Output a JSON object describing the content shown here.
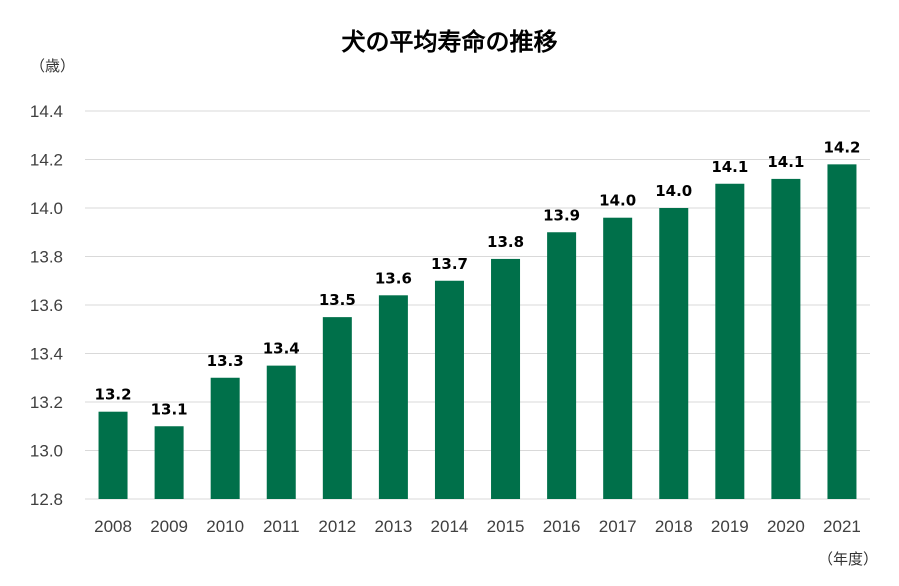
{
  "chart_data": {
    "type": "bar",
    "title": "犬の平均寿命の推移",
    "ylabel": "（歳）",
    "xlabel": "（年度）",
    "categories": [
      "2008",
      "2009",
      "2010",
      "2011",
      "2012",
      "2013",
      "2014",
      "2015",
      "2016",
      "2017",
      "2018",
      "2019",
      "2020",
      "2021"
    ],
    "values": [
      13.16,
      13.1,
      13.3,
      13.35,
      13.55,
      13.64,
      13.7,
      13.79,
      13.9,
      13.96,
      14.0,
      14.1,
      14.12,
      14.18
    ],
    "data_labels": [
      "13.2",
      "13.1",
      "13.3",
      "13.4",
      "13.5",
      "13.6",
      "13.7",
      "13.8",
      "13.9",
      "14.0",
      "14.0",
      "14.1",
      "14.1",
      "14.2"
    ],
    "ylim": [
      12.8,
      14.4
    ],
    "yticks": [
      "12.8",
      "13.0",
      "13.2",
      "13.4",
      "13.6",
      "13.8",
      "14.0",
      "14.2",
      "14.4"
    ],
    "grid": true,
    "legend": "none",
    "bar_color": "#00704A",
    "grid_color": "#D9D9D9"
  }
}
